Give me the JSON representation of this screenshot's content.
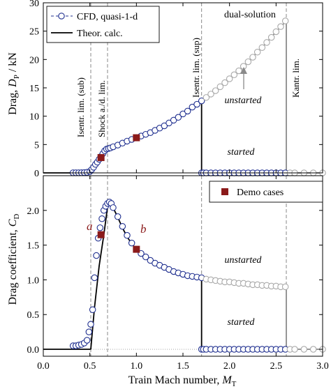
{
  "chart_data": [
    {
      "type": "line",
      "panel": "top",
      "ylabel_prefix": "Drag, ",
      "ylabel_var": "D",
      "ylabel_sub": "P",
      "ylabel_unit": " / kN",
      "xlim": [
        0.0,
        3.0
      ],
      "ylim": [
        0,
        30
      ],
      "yticks": [
        0,
        5,
        10,
        15,
        20,
        25,
        30
      ],
      "legend_position": "top-left",
      "legend": [
        "CFD, quasi-1-d",
        "Theor. calc."
      ],
      "annotations": {
        "dual_solution": "dual-solution",
        "unstarted": "unstarted",
        "started": "started",
        "isentr_sub": "Isentr. lim. (sub)",
        "shock": "Shock a./d. lim.",
        "isentr_sup": "Isentr. lim. (sup)",
        "kantr": "Kantr. lim."
      },
      "limit_lines": {
        "isentr_sub": 0.51,
        "shock": 0.69,
        "isentr_sup": 1.7,
        "kantr": 2.61
      },
      "theory_subsonic": {
        "x": [
          0.0,
          0.51
        ],
        "y": [
          0,
          0
        ]
      },
      "theory_rise": {
        "x": [
          0.51,
          0.52,
          0.55,
          0.58,
          0.62,
          0.65,
          0.69
        ],
        "y": [
          0,
          0.3,
          1.0,
          1.7,
          2.6,
          3.3,
          4.0
        ]
      },
      "theory_main": {
        "x": [
          0.69,
          0.8,
          0.9,
          1.0,
          1.1,
          1.2,
          1.3,
          1.4,
          1.5,
          1.6,
          1.7
        ],
        "y": [
          4.0,
          4.9,
          5.6,
          6.2,
          6.8,
          7.5,
          8.3,
          9.3,
          10.4,
          11.6,
          12.7
        ]
      },
      "theory_unstarted": {
        "x": [
          1.7,
          1.8,
          1.9,
          2.0,
          2.1,
          2.2,
          2.3,
          2.4,
          2.5,
          2.61
        ],
        "y": [
          12.7,
          13.9,
          15.2,
          16.6,
          18.0,
          19.6,
          21.3,
          23.0,
          24.9,
          26.8
        ]
      },
      "theory_started": {
        "x": [
          1.7,
          3.0
        ],
        "y": [
          0,
          0
        ]
      },
      "cfd_subsonic": {
        "x": [
          0.32,
          0.35,
          0.38,
          0.41,
          0.44,
          0.47,
          0.5,
          0.52,
          0.54,
          0.56,
          0.58,
          0.6,
          0.62,
          0.64,
          0.66,
          0.68,
          0.7
        ],
        "y": [
          0.02,
          0.02,
          0.02,
          0.03,
          0.05,
          0.1,
          0.25,
          0.6,
          1.0,
          1.5,
          1.9,
          2.4,
          2.9,
          3.4,
          3.9,
          4.2,
          4.3
        ]
      },
      "cfd_main": {
        "x": [
          0.72,
          0.75,
          0.8,
          0.85,
          0.9,
          0.95,
          1.0,
          1.05,
          1.1,
          1.15,
          1.2,
          1.25,
          1.3,
          1.35,
          1.4,
          1.45,
          1.5,
          1.55,
          1.6,
          1.65,
          1.7
        ],
        "y": [
          4.4,
          4.6,
          4.9,
          5.25,
          5.6,
          5.9,
          6.2,
          6.5,
          6.8,
          7.1,
          7.5,
          7.9,
          8.3,
          8.8,
          9.3,
          9.8,
          10.4,
          10.9,
          11.6,
          12.1,
          12.7
        ]
      },
      "cfd_unstarted": {
        "x": [
          1.75,
          1.8,
          1.85,
          1.9,
          1.95,
          2.0,
          2.05,
          2.1,
          2.15,
          2.2,
          2.25,
          2.3,
          2.35,
          2.4,
          2.45,
          2.5,
          2.55,
          2.6
        ],
        "y": [
          13.3,
          13.9,
          14.5,
          15.2,
          15.9,
          16.6,
          17.3,
          18.0,
          18.8,
          19.6,
          20.4,
          21.3,
          22.1,
          23.0,
          23.9,
          24.9,
          25.8,
          26.8
        ]
      },
      "cfd_started": {
        "x": [
          1.7,
          1.72,
          1.75,
          1.8,
          1.85,
          1.9,
          1.95,
          2.0,
          2.05,
          2.1,
          2.15,
          2.2,
          2.25,
          2.3,
          2.35,
          2.4,
          2.45,
          2.5,
          2.55,
          2.6
        ],
        "y": [
          0,
          0,
          0,
          0,
          0,
          0,
          0,
          0,
          0,
          0,
          0,
          0,
          0,
          0,
          0,
          0,
          0,
          0,
          0,
          0
        ]
      },
      "cfd_beyond": {
        "x": [
          2.65,
          2.7,
          2.8,
          2.9,
          3.0
        ],
        "y": [
          0,
          0,
          0,
          0,
          0
        ]
      },
      "demo_cases": {
        "x": [
          0.62,
          1.0
        ],
        "y": [
          2.7,
          6.2
        ]
      }
    },
    {
      "type": "line",
      "panel": "bottom",
      "ylabel_prefix": "Drag coefficient, ",
      "ylabel_var": "C",
      "ylabel_sub": "D",
      "xlabel_prefix": "Train Mach number, ",
      "xlabel_var": "M",
      "xlabel_sub": "T",
      "xlim": [
        0.0,
        3.0
      ],
      "ylim": [
        -0.1,
        2.5
      ],
      "xticks": [
        0.0,
        0.5,
        1.0,
        1.5,
        2.0,
        2.5,
        3.0
      ],
      "xtick_labels": [
        "0.0",
        "0.5",
        "1.0",
        "1.5",
        "2.0",
        "2.5",
        "3.0"
      ],
      "yticks": [
        0.0,
        0.5,
        1.0,
        1.5,
        2.0
      ],
      "ytick_labels": [
        "0.0",
        "0.5",
        "1.0",
        "1.5",
        "2.0"
      ],
      "legend_position": "top-right",
      "legend": [
        "Demo cases"
      ],
      "annotations": {
        "a": "a",
        "b": "b",
        "unstarted": "unstarted",
        "started": "started"
      },
      "limit_lines": {
        "isentr_sub": 0.51,
        "shock": 0.69,
        "isentr_sup": 1.7,
        "kantr": 2.61
      },
      "theory_subsonic": {
        "x": [
          0.0,
          0.51
        ],
        "y": [
          0,
          0
        ]
      },
      "theory_rise": {
        "x": [
          0.51,
          0.55,
          0.6,
          0.65,
          0.69
        ],
        "y": [
          0.0,
          0.6,
          1.2,
          1.65,
          2.05
        ]
      },
      "theory_main": {
        "x": [
          0.69,
          0.72,
          0.75,
          0.8,
          0.85,
          0.9,
          0.95,
          1.0,
          1.1,
          1.2,
          1.3,
          1.4,
          1.5,
          1.6,
          1.7
        ],
        "y": [
          2.05,
          2.09,
          2.04,
          1.9,
          1.75,
          1.62,
          1.52,
          1.44,
          1.33,
          1.24,
          1.18,
          1.12,
          1.08,
          1.05,
          1.02
        ]
      },
      "theory_unstarted": {
        "x": [
          1.7,
          1.8,
          1.9,
          2.0,
          2.1,
          2.2,
          2.3,
          2.4,
          2.5,
          2.61
        ],
        "y": [
          1.02,
          1.0,
          0.98,
          0.97,
          0.95,
          0.94,
          0.93,
          0.92,
          0.91,
          0.9
        ]
      },
      "theory_started": {
        "x": [
          1.7,
          3.0
        ],
        "y": [
          0,
          0
        ]
      },
      "cfd_subsonic": {
        "x": [
          0.32,
          0.35,
          0.38,
          0.41,
          0.44,
          0.47,
          0.49,
          0.51,
          0.53,
          0.55,
          0.57,
          0.59,
          0.61,
          0.63,
          0.65,
          0.67,
          0.69,
          0.71
        ],
        "y": [
          0.05,
          0.05,
          0.06,
          0.07,
          0.09,
          0.13,
          0.25,
          0.36,
          0.57,
          1.03,
          1.35,
          1.6,
          1.75,
          1.88,
          2.0,
          2.06,
          2.1,
          2.12
        ]
      },
      "cfd_main": {
        "x": [
          0.73,
          0.75,
          0.8,
          0.85,
          0.9,
          0.95,
          1.0,
          1.05,
          1.1,
          1.15,
          1.2,
          1.25,
          1.3,
          1.35,
          1.4,
          1.45,
          1.5,
          1.55,
          1.6,
          1.65,
          1.7
        ],
        "y": [
          2.1,
          2.04,
          1.91,
          1.77,
          1.64,
          1.53,
          1.44,
          1.38,
          1.33,
          1.28,
          1.24,
          1.21,
          1.18,
          1.15,
          1.12,
          1.1,
          1.08,
          1.06,
          1.05,
          1.04,
          1.03
        ]
      },
      "cfd_unstarted": {
        "x": [
          1.75,
          1.8,
          1.85,
          1.9,
          1.95,
          2.0,
          2.05,
          2.1,
          2.15,
          2.2,
          2.25,
          2.3,
          2.35,
          2.4,
          2.45,
          2.5,
          2.55,
          2.6
        ],
        "y": [
          1.01,
          1.0,
          0.99,
          0.98,
          0.97,
          0.97,
          0.96,
          0.95,
          0.95,
          0.94,
          0.93,
          0.93,
          0.92,
          0.92,
          0.91,
          0.91,
          0.9,
          0.9
        ]
      },
      "cfd_started": {
        "x": [
          1.7,
          1.72,
          1.75,
          1.8,
          1.85,
          1.9,
          1.95,
          2.0,
          2.05,
          2.1,
          2.15,
          2.2,
          2.25,
          2.3,
          2.35,
          2.4,
          2.45,
          2.5,
          2.55,
          2.6
        ],
        "y": [
          0,
          0,
          0,
          0,
          0,
          0,
          0,
          0,
          0,
          0,
          0,
          0,
          0,
          0,
          0,
          0,
          0,
          0,
          0,
          0
        ]
      },
      "cfd_beyond": {
        "x": [
          2.65,
          2.7,
          2.8,
          2.9,
          3.0
        ],
        "y": [
          0,
          0,
          0,
          0,
          0
        ]
      },
      "demo_cases": {
        "x": [
          0.62,
          1.0
        ],
        "y": [
          1.65,
          1.44
        ]
      }
    }
  ],
  "colors": {
    "cfd_marker": "#1f2f8f",
    "theory": "#000000",
    "theory_unstarted": "#8a8a8a",
    "cfd_grey": "#a9a9a9",
    "demo": "#8b1a1a",
    "grid_limit": "#888888",
    "zero_dots": "#999999"
  }
}
